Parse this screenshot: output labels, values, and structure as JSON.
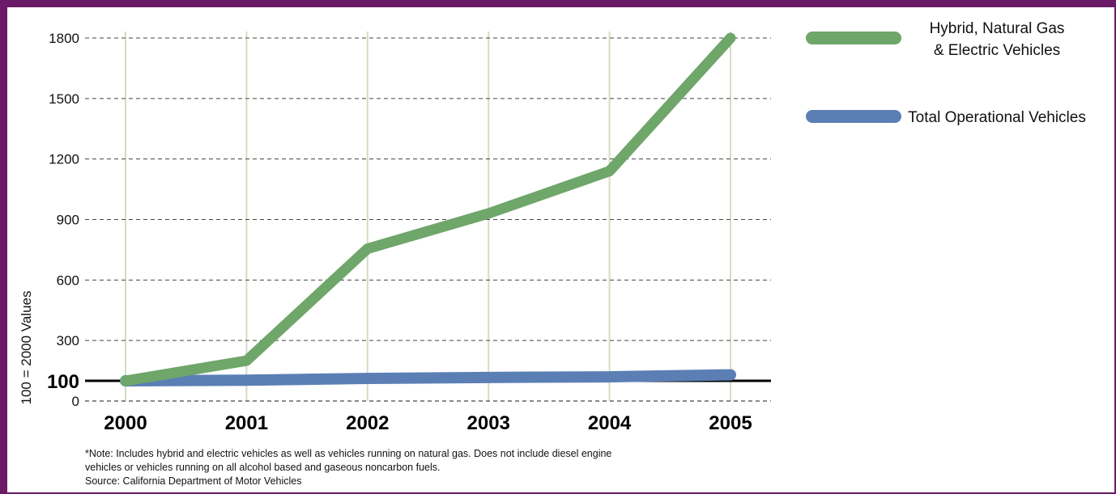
{
  "chart_data": {
    "type": "line",
    "ylabel": "100 = 2000 Values",
    "xlabel": "",
    "title": "",
    "x": [
      2000,
      2001,
      2002,
      2003,
      2004,
      2005
    ],
    "x_tick_labels": [
      "2000",
      "2001",
      "2002",
      "2003",
      "2004",
      "2005"
    ],
    "ylim": [
      0,
      1800
    ],
    "y_ticks": [
      0,
      300,
      600,
      900,
      1200,
      1500,
      1800
    ],
    "y_tick_labels": [
      "0",
      "300",
      "600",
      "900",
      "1200",
      "1500",
      "1800"
    ],
    "baseline": {
      "value": 100,
      "label": "100"
    },
    "grid": {
      "horizontal": "dashed",
      "vertical": "solid"
    },
    "legend_position": "right",
    "series": [
      {
        "name": "Hybrid, Natural Gas & Electric Vehicles",
        "legend_lines": [
          "Hybrid, Natural Gas",
          "& Electric Vehicles"
        ],
        "color": "#6fa66a",
        "values": [
          100,
          200,
          755,
          930,
          1140,
          1800
        ]
      },
      {
        "name": "Total Operational Vehicles",
        "legend_lines": [
          "Total Operational Vehicles"
        ],
        "color": "#5b7fb5",
        "values": [
          100,
          103,
          112,
          117,
          120,
          130
        ]
      }
    ],
    "colors": {
      "frame": "#6a1a66",
      "grid_vertical": "#d4dcc4",
      "grid_horizontal": "#444444"
    }
  },
  "note": {
    "lines": [
      "*Note: Includes hybrid and electric vehicles as well as vehicles running on natural gas.  Does not include diesel engine",
      "vehicles or vehicles running on all alcohol based and gaseous noncarbon fuels.",
      "Source: California Department of Motor Vehicles"
    ]
  }
}
